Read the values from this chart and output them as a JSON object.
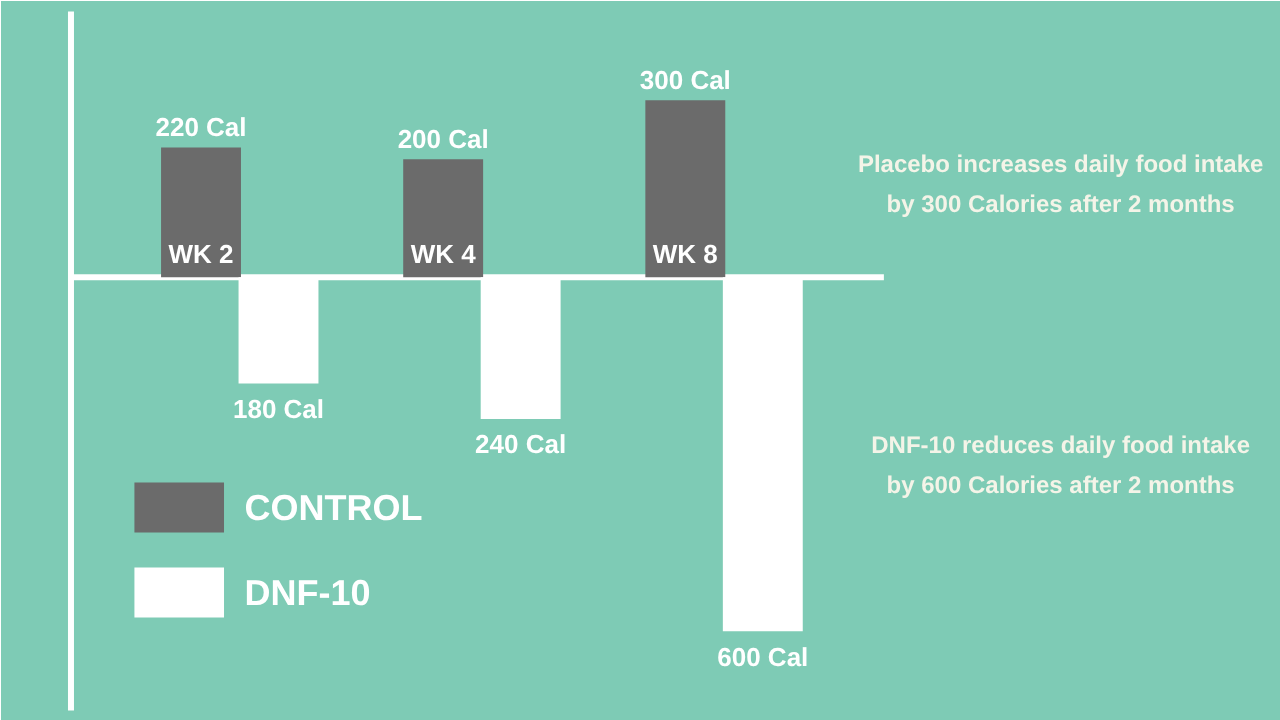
{
  "chart_data": {
    "type": "bar",
    "categories": [
      "WK 2",
      "WK 4",
      "WK 8"
    ],
    "series": [
      {
        "name": "CONTROL",
        "color": "#6b6b6b",
        "values": [
          220,
          200,
          300
        ],
        "value_labels": [
          "220 Cal",
          "200 Cal",
          "300 Cal"
        ]
      },
      {
        "name": "DNF-10",
        "color": "#ffffff",
        "values": [
          -180,
          -240,
          -600
        ]
      }
    ],
    "legend": "bottom left",
    "annotations": [
      "Placebo increases daily food intake by 300 Calories after 2 months",
      "DNF-10 reduces daily food intake by 600 Calories after 2 months",
      "180 Cal",
      "240 Cal",
      "600 Cal"
    ]
  }
}
